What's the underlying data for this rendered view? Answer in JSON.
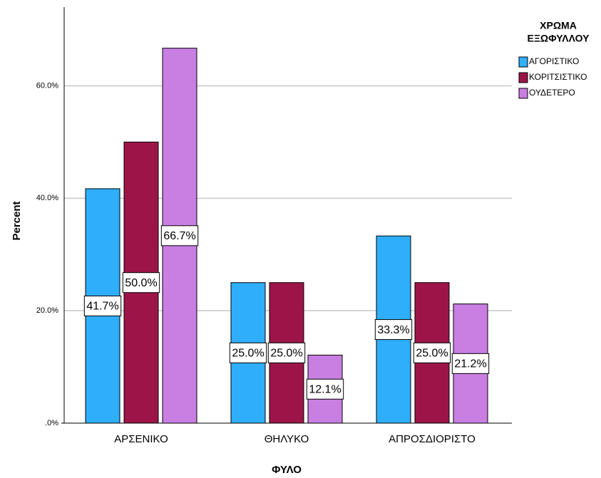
{
  "chart_data": {
    "type": "bar",
    "xlabel": "ΦΥΛΟ",
    "ylabel": "Percent",
    "legend_title": [
      "ΧΡΩΜΑ",
      "ΕΞΩΦΥΛΛΟΥ"
    ],
    "legend": "right",
    "categories": [
      "ΑΡΣΕΝΙΚΟ",
      "ΘΗΛΥΚΟ",
      "ΑΠΡΟΣΔΙΟΡΙΣΤΟ"
    ],
    "series": [
      {
        "name": "ΑΓΟΡΙΣΤΙΚΟ",
        "color": "#2eaefb",
        "values": [
          41.7,
          25.0,
          33.3
        ],
        "value_labels": [
          "41.7%",
          "25.0%",
          "33.3%"
        ]
      },
      {
        "name": "ΚΟΡΙΤΣΙΣΤΙΚΟ",
        "color": "#9d1548",
        "values": [
          50.0,
          25.0,
          25.0
        ],
        "value_labels": [
          "50.0%",
          "25.0%",
          "25.0%"
        ]
      },
      {
        "name": "ΟΥΔΕΤΕΡΟ",
        "color": "#c97ee2",
        "values": [
          66.7,
          12.1,
          21.2
        ],
        "value_labels": [
          "66.7%",
          "12.1%",
          "21.2%"
        ]
      }
    ],
    "ylim": [
      0,
      74
    ],
    "yticks": [
      {
        "value": 0,
        "label": ".0%"
      },
      {
        "value": 20,
        "label": "20.0%"
      },
      {
        "value": 40,
        "label": "40.0%"
      },
      {
        "value": 60,
        "label": "60.0%"
      }
    ],
    "grid": true
  }
}
